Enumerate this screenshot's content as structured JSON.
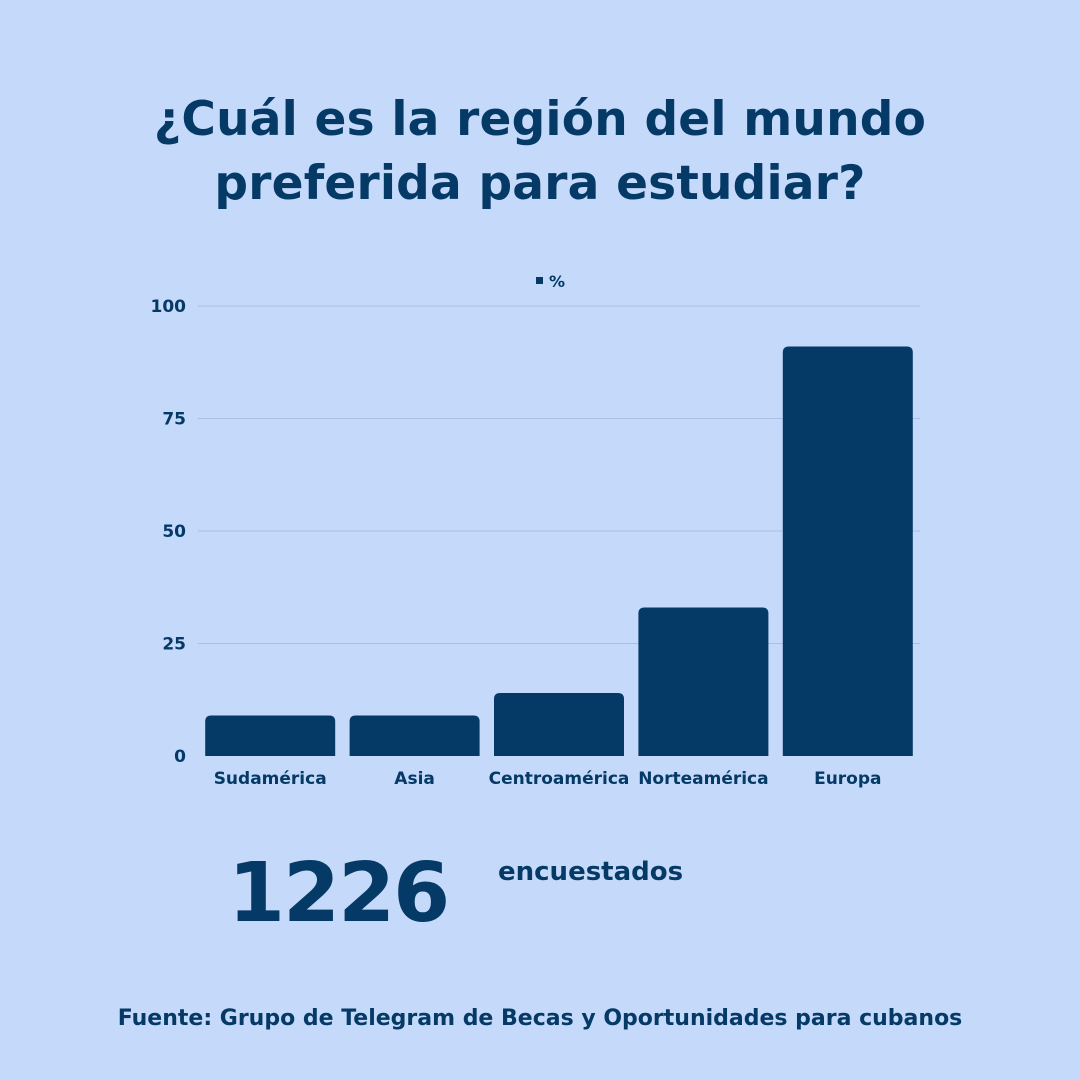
{
  "colors": {
    "background": "#c5d9fb",
    "accent": "#053a66",
    "grid": "#a9bfe3"
  },
  "title": {
    "line1": "¿Cuál es la región del mundo",
    "line2": "preferida para estudiar?"
  },
  "chart_data": {
    "type": "bar",
    "legend": "%",
    "legend_position": "top-center",
    "categories": [
      "Sudamérica",
      "Asia",
      "Centroamérica",
      "Norteamérica",
      "Europa"
    ],
    "series": [
      {
        "name": "%",
        "values": [
          9,
          9,
          14,
          33,
          91
        ]
      }
    ],
    "yticks": [
      0,
      25,
      50,
      75,
      100
    ],
    "ylim": [
      0,
      100
    ],
    "grid": true
  },
  "respondents": {
    "count": "1226",
    "label": "encuestados"
  },
  "source": "Fuente: Grupo de Telegram de Becas y Oportunidades para cubanos"
}
